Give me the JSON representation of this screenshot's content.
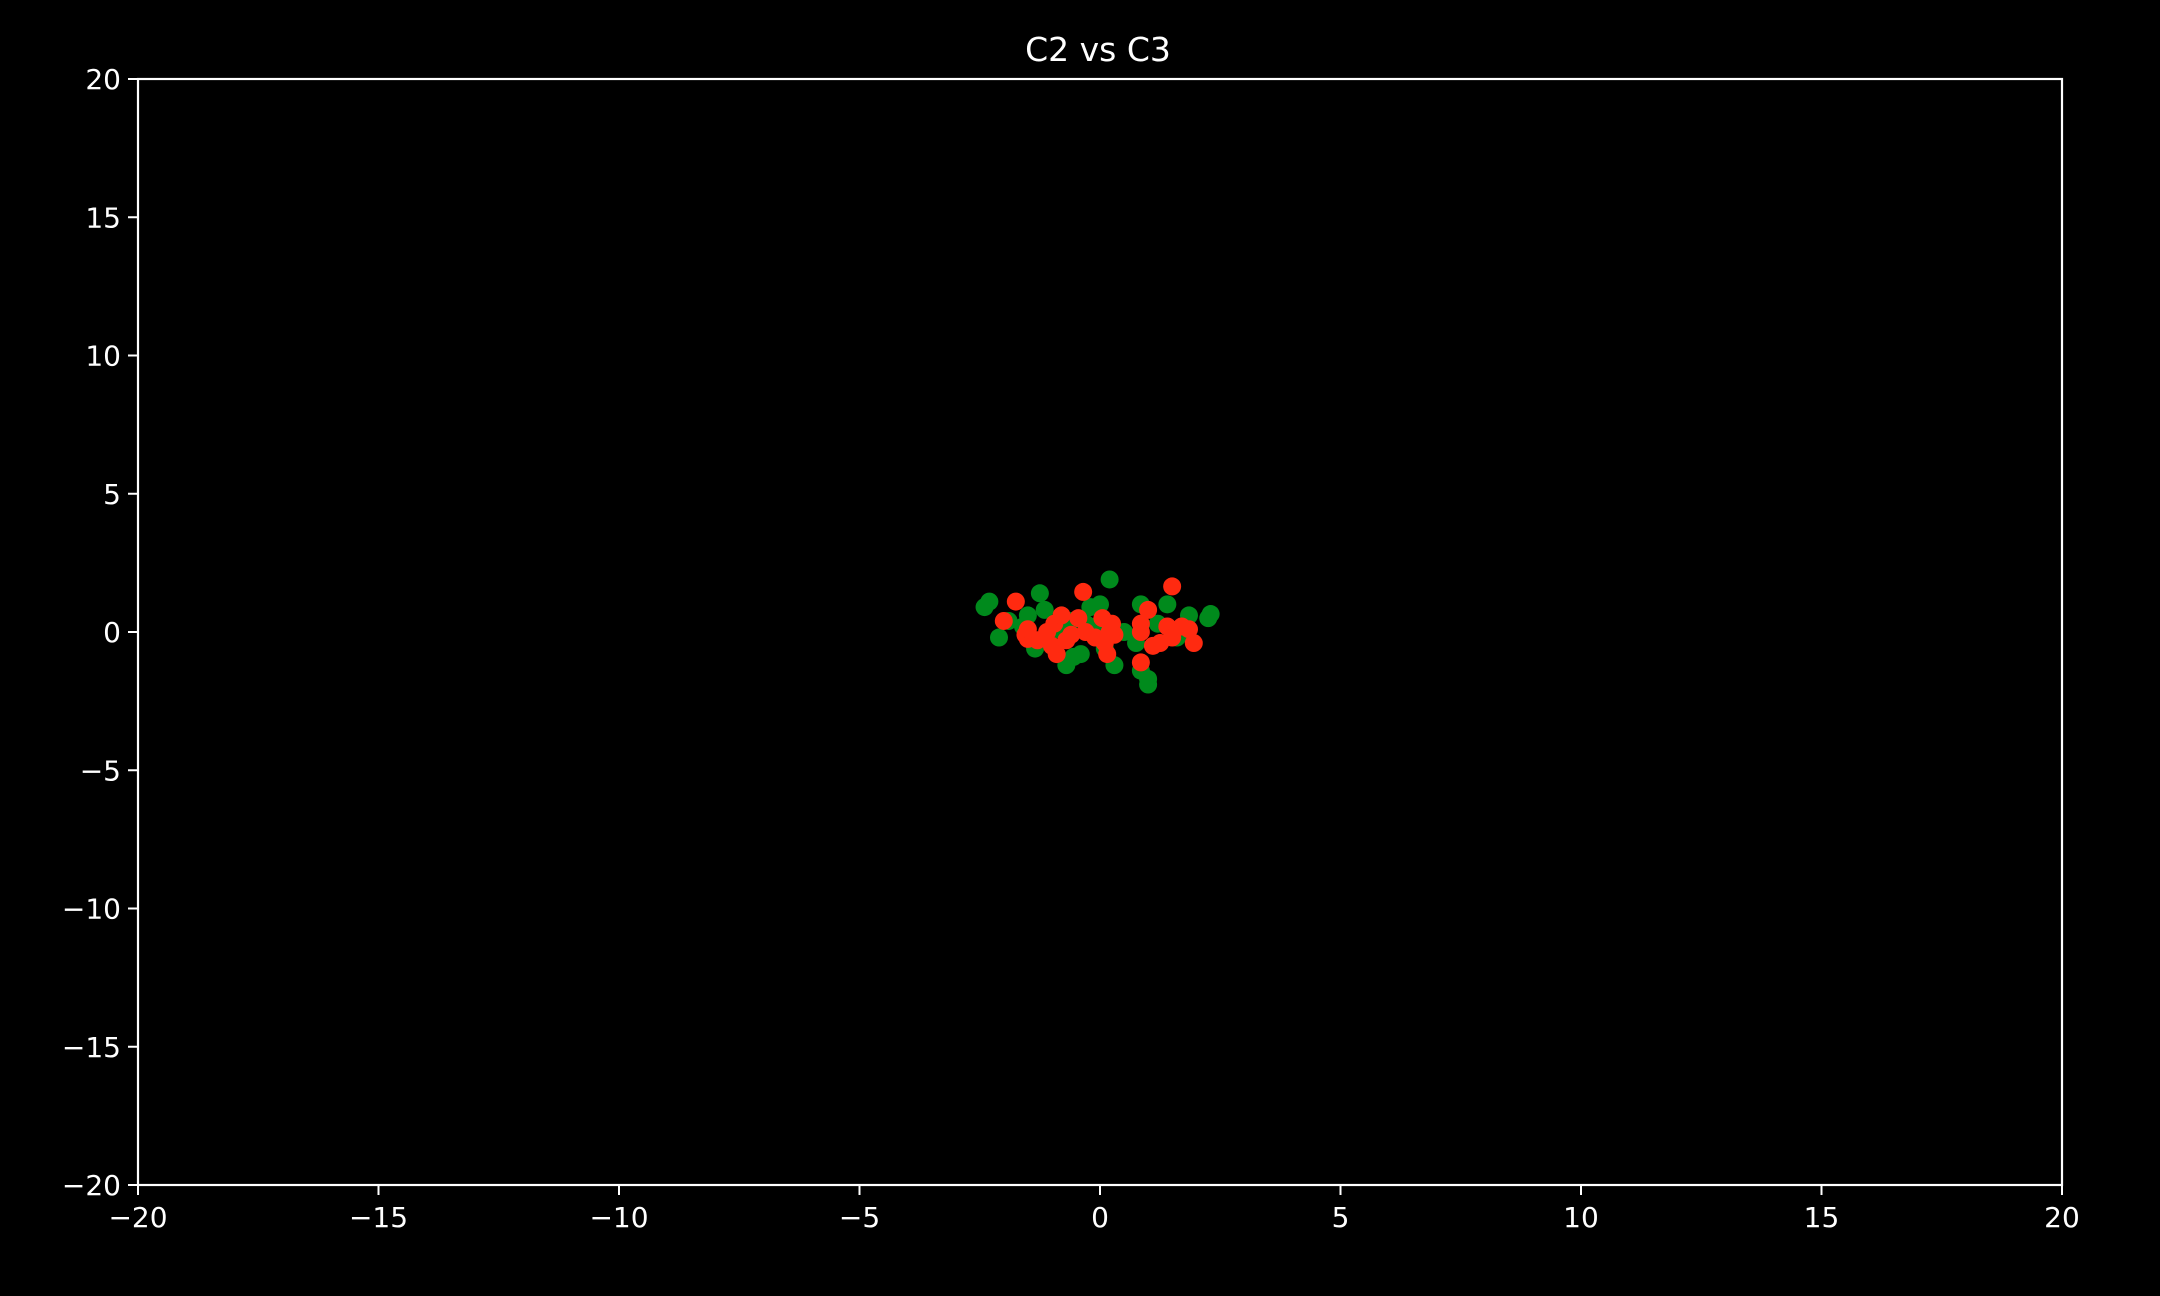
{
  "chart_data": {
    "type": "scatter",
    "title": "C2 vs C3",
    "xlabel": "",
    "ylabel": "",
    "xlim": [
      -20,
      20
    ],
    "ylim": [
      -20,
      20
    ],
    "x_ticks": [
      -20,
      -15,
      -10,
      -5,
      0,
      5,
      10,
      15,
      20
    ],
    "x_tick_labels": [
      "−20",
      "−15",
      "−10",
      "−5",
      "0",
      "5",
      "10",
      "15",
      "20"
    ],
    "y_ticks": [
      20,
      15,
      10,
      5,
      0,
      -5,
      -10,
      -15,
      -20
    ],
    "y_tick_labels": [
      "20",
      "15",
      "10",
      "5",
      "0",
      "−5",
      "−10",
      "−15",
      "−20"
    ],
    "grid": false,
    "background": "#000000",
    "axis_color": "#ffffff",
    "series": [
      {
        "color": "#008a1c",
        "points": [
          [
            -2.4,
            0.9
          ],
          [
            -2.3,
            1.1
          ],
          [
            -2.1,
            -0.2
          ],
          [
            -1.9,
            0.4
          ],
          [
            -1.6,
            0.2
          ],
          [
            -1.5,
            0.6
          ],
          [
            -1.35,
            -0.6
          ],
          [
            -1.25,
            1.4
          ],
          [
            -1.15,
            0.8
          ],
          [
            -0.9,
            0.1
          ],
          [
            -0.7,
            -1.2
          ],
          [
            -0.6,
            0.4
          ],
          [
            -0.55,
            -0.9
          ],
          [
            -0.4,
            -0.8
          ],
          [
            -0.3,
            0.3
          ],
          [
            -0.1,
            0.2
          ],
          [
            0.0,
            1.0
          ],
          [
            0.1,
            -0.6
          ],
          [
            0.2,
            1.9
          ],
          [
            0.3,
            -1.2
          ],
          [
            0.5,
            0.0
          ],
          [
            0.75,
            -0.4
          ],
          [
            0.85,
            1.0
          ],
          [
            0.85,
            -1.4
          ],
          [
            1.0,
            -1.7
          ],
          [
            1.0,
            -1.9
          ],
          [
            1.2,
            0.3
          ],
          [
            1.4,
            1.0
          ],
          [
            1.6,
            -0.2
          ],
          [
            1.85,
            0.6
          ],
          [
            2.25,
            0.5
          ],
          [
            2.3,
            0.65
          ],
          [
            1.7,
            0.0
          ],
          [
            -0.2,
            0.9
          ]
        ]
      },
      {
        "color": "#ff2a10",
        "points": [
          [
            -2.0,
            0.4
          ],
          [
            -1.75,
            1.1
          ],
          [
            -1.55,
            -0.1
          ],
          [
            -1.5,
            -0.25
          ],
          [
            -1.3,
            -0.3
          ],
          [
            -1.1,
            0.0
          ],
          [
            -1.0,
            -0.5
          ],
          [
            -0.95,
            0.3
          ],
          [
            -0.9,
            -0.8
          ],
          [
            -0.8,
            0.6
          ],
          [
            -0.7,
            -0.3
          ],
          [
            -0.6,
            -0.1
          ],
          [
            -0.45,
            0.5
          ],
          [
            -0.35,
            1.45
          ],
          [
            -0.3,
            0.0
          ],
          [
            -0.1,
            -0.2
          ],
          [
            0.05,
            0.5
          ],
          [
            0.1,
            -0.4
          ],
          [
            0.15,
            -0.8
          ],
          [
            0.25,
            0.3
          ],
          [
            0.3,
            -0.1
          ],
          [
            0.85,
            0.3
          ],
          [
            0.85,
            0.0
          ],
          [
            0.85,
            -1.1
          ],
          [
            1.0,
            0.8
          ],
          [
            1.1,
            -0.5
          ],
          [
            1.25,
            -0.4
          ],
          [
            1.4,
            0.2
          ],
          [
            1.5,
            1.65
          ],
          [
            1.5,
            -0.2
          ],
          [
            1.7,
            0.2
          ],
          [
            1.85,
            0.1
          ],
          [
            1.95,
            -0.4
          ],
          [
            -1.5,
            0.1
          ],
          [
            0.2,
            0.0
          ]
        ]
      }
    ]
  }
}
